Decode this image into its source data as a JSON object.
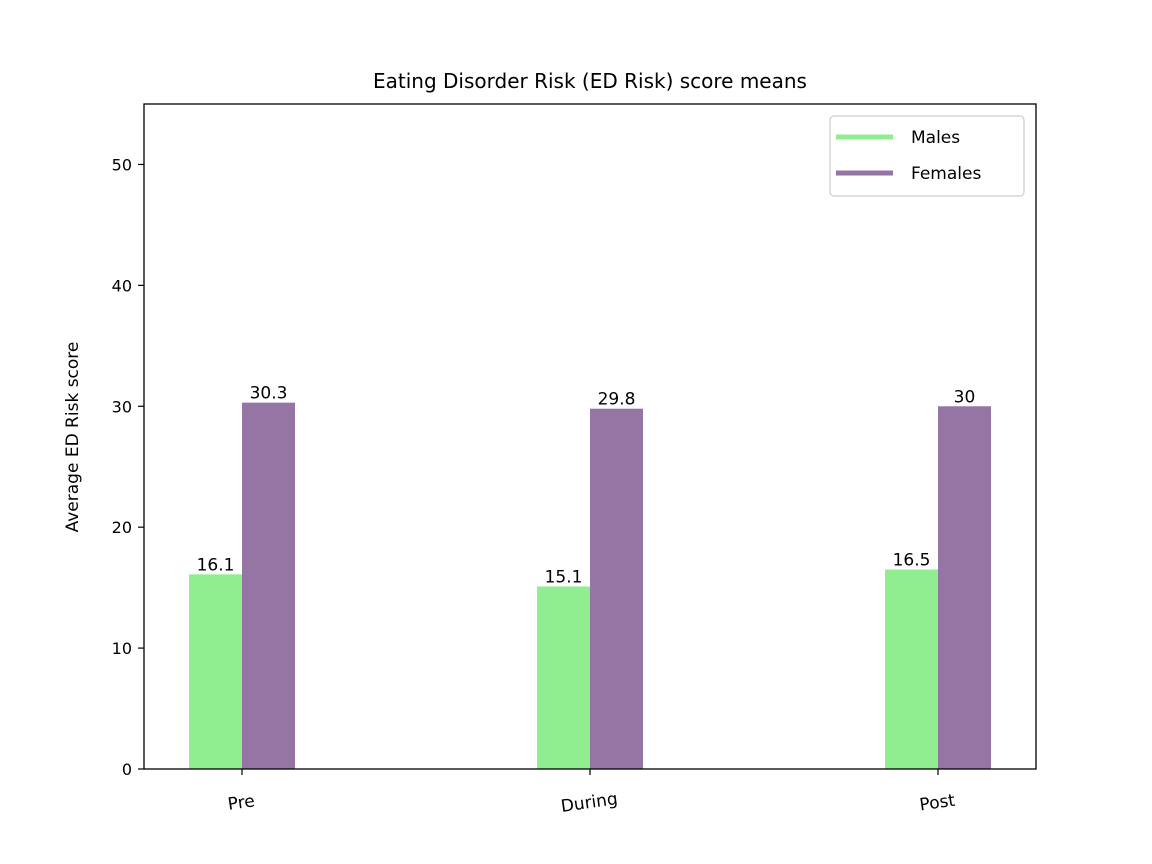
{
  "chart_data": {
    "type": "bar",
    "title": "Eating Disorder Risk (ED Risk) score means",
    "xlabel": "",
    "ylabel": "Average ED Risk score",
    "categories": [
      "Pre",
      "During",
      "Post"
    ],
    "series": [
      {
        "name": "Males",
        "values": [
          16.1,
          15.1,
          16.5
        ],
        "labels": [
          "16.1",
          "15.1",
          "16.5"
        ],
        "color": "#90ee90"
      },
      {
        "name": "Females",
        "values": [
          30.3,
          29.8,
          30
        ],
        "labels": [
          "30.3",
          "29.8",
          "30"
        ],
        "color": "#9575a3"
      }
    ],
    "ylim": [
      0,
      55
    ],
    "yticks": [
      0,
      10,
      20,
      30,
      40,
      50
    ],
    "grid": false,
    "legend_position": "top-right"
  }
}
